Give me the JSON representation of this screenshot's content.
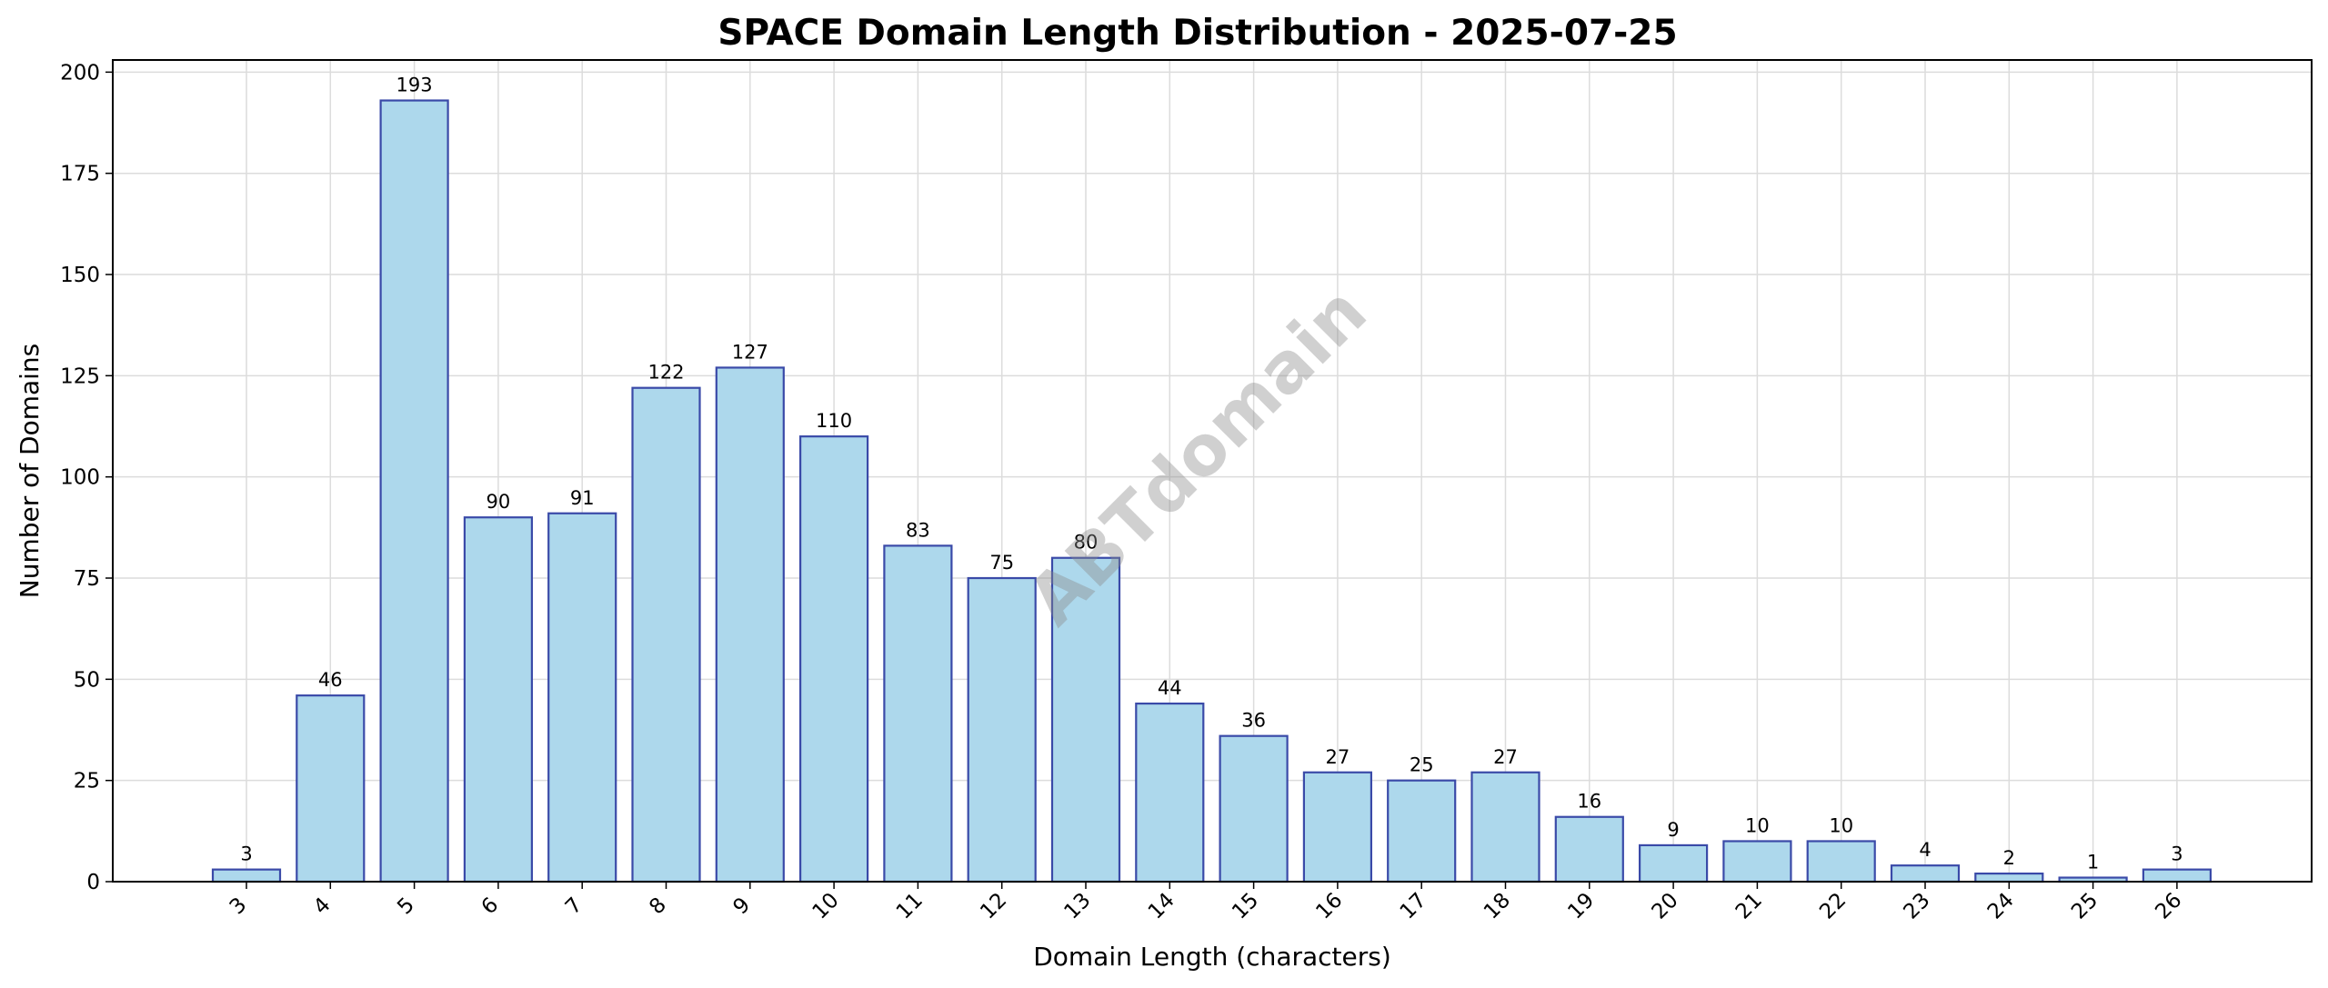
{
  "chart_data": {
    "type": "bar",
    "title": "SPACE Domain Length Distribution - 2025-07-25",
    "xlabel": "Domain Length (characters)",
    "ylabel": "Number of Domains",
    "categories": [
      "3",
      "4",
      "5",
      "6",
      "7",
      "8",
      "9",
      "10",
      "11",
      "12",
      "13",
      "14",
      "15",
      "16",
      "17",
      "18",
      "19",
      "20",
      "21",
      "22",
      "23",
      "24",
      "25",
      "26"
    ],
    "values": [
      3,
      46,
      193,
      90,
      91,
      122,
      127,
      110,
      83,
      75,
      80,
      44,
      36,
      27,
      25,
      27,
      16,
      9,
      10,
      10,
      4,
      2,
      1,
      3
    ],
    "ylim": [
      0,
      203
    ],
    "yticks": [
      0,
      25,
      50,
      75,
      100,
      125,
      150,
      175,
      200
    ],
    "grid": true,
    "watermark": "ABTdomain",
    "colors": {
      "bar_fill": "#add8ec",
      "bar_edge": "#3a4aa8",
      "grid": "#dcdcdc"
    }
  }
}
